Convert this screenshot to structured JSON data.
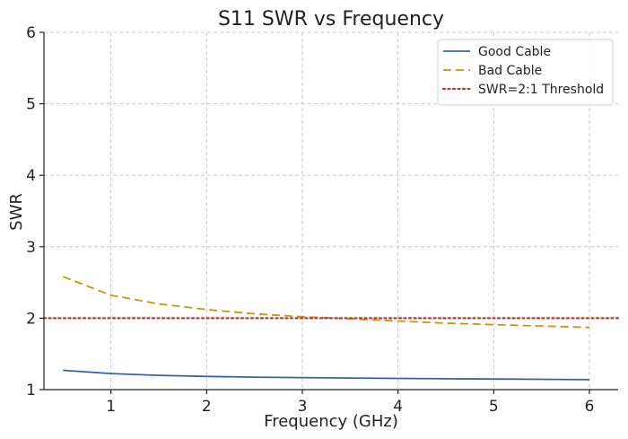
{
  "chart_data": {
    "type": "line",
    "title": "S11 SWR vs Frequency",
    "xlabel": "Frequency (GHz)",
    "ylabel": "SWR",
    "xlim": [
      0.3,
      6.3
    ],
    "ylim": [
      1,
      6
    ],
    "xticks": [
      1,
      2,
      3,
      4,
      5,
      6
    ],
    "yticks": [
      1,
      2,
      3,
      4,
      5,
      6
    ],
    "grid": true,
    "legend_position": "top-right",
    "series": [
      {
        "name": "Good Cable",
        "color": "#3b5fb0",
        "style": "solid",
        "x": [
          0.5,
          1.0,
          1.5,
          2.0,
          2.5,
          3.0,
          3.5,
          4.0,
          4.5,
          5.0,
          5.5,
          6.0
        ],
        "y": [
          1.27,
          1.225,
          1.2,
          1.185,
          1.175,
          1.168,
          1.162,
          1.157,
          1.152,
          1.148,
          1.145,
          1.14
        ]
      },
      {
        "name": "Bad Cable",
        "color": "#c8960a",
        "style": "dashed",
        "x": [
          0.5,
          1.0,
          1.5,
          2.0,
          2.5,
          3.0,
          3.5,
          4.0,
          4.5,
          5.0,
          5.5,
          6.0
        ],
        "y": [
          2.58,
          2.32,
          2.2,
          2.12,
          2.06,
          2.02,
          1.99,
          1.96,
          1.93,
          1.91,
          1.89,
          1.87
        ]
      },
      {
        "name": "SWR=2:1 Threshold",
        "color": "#c0392b",
        "style": "dotted",
        "x": [
          0.3,
          6.3
        ],
        "y": [
          2,
          2
        ]
      }
    ]
  }
}
